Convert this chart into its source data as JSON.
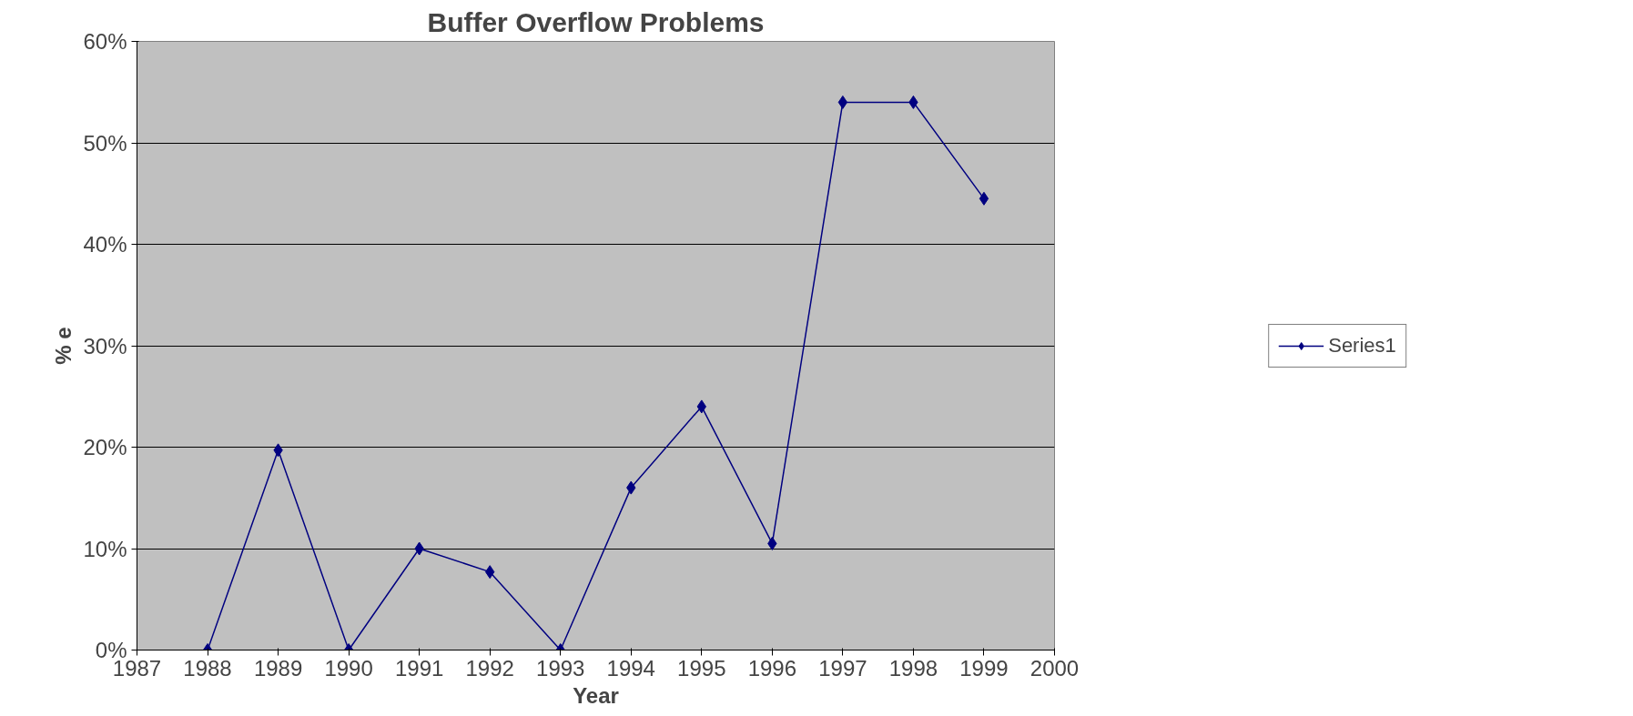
{
  "chart_data": {
    "type": "line",
    "title": "Buffer Overflow Problems",
    "xlabel": "Year",
    "ylabel": "% e",
    "x": [
      1988,
      1989,
      1990,
      1991,
      1992,
      1993,
      1994,
      1995,
      1996,
      1997,
      1998,
      1999
    ],
    "series": [
      {
        "name": "Series1",
        "color": "#000080",
        "values": [
          0,
          19.7,
          0,
          10,
          7.7,
          0,
          16,
          24,
          10.5,
          54,
          54,
          44.5
        ]
      }
    ],
    "xlim": [
      1987,
      2000
    ],
    "xticks": [
      1987,
      1988,
      1989,
      1990,
      1991,
      1992,
      1993,
      1994,
      1995,
      1996,
      1997,
      1998,
      1999,
      2000
    ],
    "ylim": [
      0,
      60
    ],
    "yticks": [
      {
        "value": 0,
        "label": "0%"
      },
      {
        "value": 10,
        "label": "10%"
      },
      {
        "value": 20,
        "label": "20%"
      },
      {
        "value": 30,
        "label": "30%"
      },
      {
        "value": 40,
        "label": "40%"
      },
      {
        "value": 50,
        "label": "50%"
      },
      {
        "value": 60,
        "label": "60%"
      }
    ],
    "grid": "y",
    "legend": "right",
    "marker": "diamond",
    "line_style": "solid"
  }
}
